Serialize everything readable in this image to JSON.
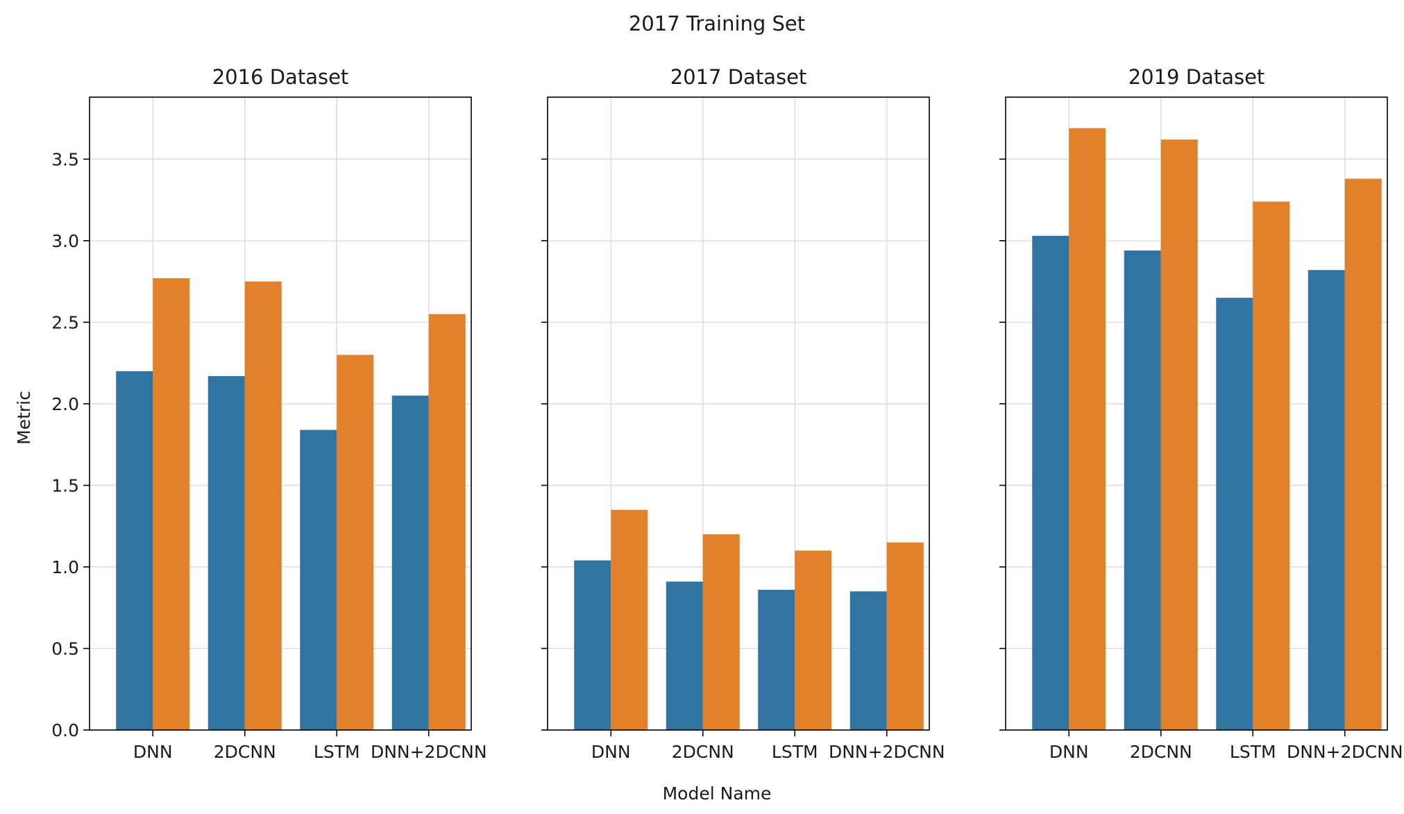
{
  "figure": {
    "suptitle": "2017 Training Set",
    "xlabel": "Model Name",
    "ylabel": "Metric"
  },
  "colors": {
    "series_a": "#3274a1",
    "series_b": "#e1812c",
    "grid": "#d9d9d9",
    "axis": "#000000"
  },
  "chart_data": [
    {
      "type": "bar",
      "title": "2016 Dataset",
      "categories": [
        "DNN",
        "2DCNN",
        "LSTM",
        "DNN+2DCNN"
      ],
      "series": [
        {
          "values": [
            2.2,
            2.17,
            1.84,
            2.05
          ]
        },
        {
          "values": [
            2.77,
            2.75,
            2.3,
            2.55
          ]
        }
      ],
      "ylim": [
        0,
        3.88
      ],
      "yticks": [
        0.0,
        0.5,
        1.0,
        1.5,
        2.0,
        2.5,
        3.0,
        3.5
      ],
      "ytick_labels": [
        "0.0",
        "0.5",
        "1.0",
        "1.5",
        "2.0",
        "2.5",
        "3.0",
        "3.5"
      ],
      "grid": true
    },
    {
      "type": "bar",
      "title": "2017 Dataset",
      "categories": [
        "DNN",
        "2DCNN",
        "LSTM",
        "DNN+2DCNN"
      ],
      "series": [
        {
          "values": [
            1.04,
            0.91,
            0.86,
            0.85
          ]
        },
        {
          "values": [
            1.35,
            1.2,
            1.1,
            1.15
          ]
        }
      ],
      "ylim": [
        0,
        3.88
      ],
      "yticks": [
        0.0,
        0.5,
        1.0,
        1.5,
        2.0,
        2.5,
        3.0,
        3.5
      ],
      "ytick_labels": [],
      "grid": true
    },
    {
      "type": "bar",
      "title": "2019 Dataset",
      "categories": [
        "DNN",
        "2DCNN",
        "LSTM",
        "DNN+2DCNN"
      ],
      "series": [
        {
          "values": [
            3.03,
            2.94,
            2.65,
            2.82
          ]
        },
        {
          "values": [
            3.69,
            3.62,
            3.24,
            3.38
          ]
        }
      ],
      "ylim": [
        0,
        3.88
      ],
      "yticks": [
        0.0,
        0.5,
        1.0,
        1.5,
        2.0,
        2.5,
        3.0,
        3.5
      ],
      "ytick_labels": [],
      "grid": true
    }
  ]
}
